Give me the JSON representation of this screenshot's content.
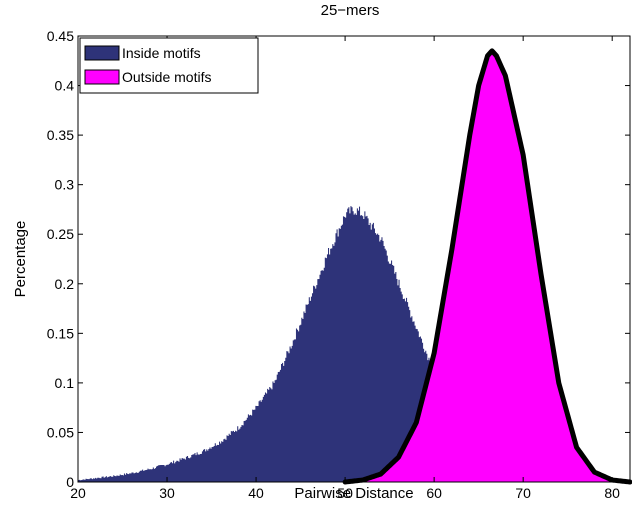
{
  "chart_data": {
    "type": "area",
    "title": "25−mers",
    "xlabel": "Pairwise Distance",
    "ylabel": "Percentage",
    "xlim": [
      20,
      82
    ],
    "ylim": [
      0,
      0.45
    ],
    "xticks": [
      "20",
      "30",
      "40",
      "50",
      "60",
      "70",
      "80"
    ],
    "yticks": [
      "0",
      "0.05",
      "0.1",
      "0.15",
      "0.2",
      "0.25",
      "0.3",
      "0.35",
      "0.4",
      "0.45"
    ],
    "grid": false,
    "legend_position": "top-left",
    "series": [
      {
        "name": "Inside motifs",
        "color": "#2E3379",
        "style": "histogram",
        "x": [
          20,
          22,
          24,
          26,
          28,
          30,
          32,
          34,
          36,
          38,
          40,
          42,
          44,
          46,
          48,
          50,
          51,
          52,
          54,
          56,
          58,
          60,
          62,
          64,
          66,
          68,
          70,
          72,
          74,
          76,
          78,
          80,
          82
        ],
        "y": [
          0.002,
          0.004,
          0.006,
          0.009,
          0.013,
          0.018,
          0.024,
          0.031,
          0.041,
          0.055,
          0.075,
          0.1,
          0.14,
          0.185,
          0.23,
          0.27,
          0.275,
          0.27,
          0.245,
          0.2,
          0.155,
          0.11,
          0.07,
          0.04,
          0.02,
          0.009,
          0.004,
          0.002,
          0.001,
          0.0005,
          0.0002,
          0.0001,
          0.0
        ]
      },
      {
        "name": "Outside motifs",
        "color": "#FF00FF",
        "style": "histogram-with-fit",
        "fit_color": "#000000",
        "x": [
          50,
          52,
          54,
          56,
          58,
          60,
          62,
          64,
          65,
          66,
          66.5,
          67,
          68,
          70,
          72,
          74,
          76,
          78,
          80,
          82
        ],
        "y": [
          0.0,
          0.002,
          0.008,
          0.025,
          0.06,
          0.13,
          0.235,
          0.35,
          0.4,
          0.43,
          0.435,
          0.43,
          0.41,
          0.33,
          0.21,
          0.1,
          0.035,
          0.01,
          0.002,
          0.0
        ]
      }
    ]
  }
}
